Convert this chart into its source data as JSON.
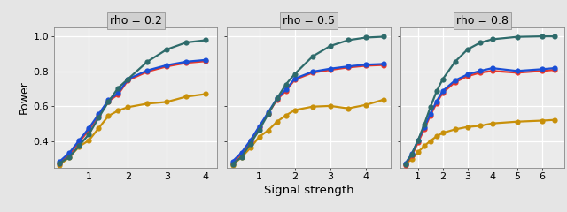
{
  "panels": [
    {
      "title": "rho = 0.2",
      "x": [
        0.25,
        0.5,
        0.75,
        1.0,
        1.25,
        1.5,
        1.75,
        2.0,
        2.5,
        3.0,
        3.5,
        4.0
      ],
      "dark_teal": [
        0.275,
        0.31,
        0.375,
        0.44,
        0.535,
        0.625,
        0.705,
        0.755,
        0.855,
        0.925,
        0.965,
        0.978
      ],
      "blue": [
        0.285,
        0.335,
        0.405,
        0.475,
        0.555,
        0.635,
        0.675,
        0.755,
        0.805,
        0.835,
        0.855,
        0.865
      ],
      "red": [
        0.275,
        0.325,
        0.395,
        0.465,
        0.548,
        0.628,
        0.668,
        0.748,
        0.798,
        0.828,
        0.848,
        0.858
      ],
      "gold": [
        0.265,
        0.31,
        0.37,
        0.405,
        0.475,
        0.545,
        0.575,
        0.595,
        0.615,
        0.625,
        0.655,
        0.67
      ],
      "xlim": [
        0.1,
        4.3
      ],
      "xticks": [
        1,
        2,
        3,
        4
      ]
    },
    {
      "title": "rho = 0.5",
      "x": [
        0.25,
        0.5,
        0.75,
        1.0,
        1.25,
        1.5,
        1.75,
        2.0,
        2.5,
        3.0,
        3.5,
        4.0,
        4.5
      ],
      "dark_teal": [
        0.27,
        0.31,
        0.385,
        0.465,
        0.555,
        0.645,
        0.725,
        0.785,
        0.885,
        0.945,
        0.978,
        0.993,
        0.998
      ],
      "blue": [
        0.285,
        0.335,
        0.405,
        0.485,
        0.565,
        0.645,
        0.695,
        0.758,
        0.798,
        0.815,
        0.828,
        0.838,
        0.842
      ],
      "red": [
        0.275,
        0.328,
        0.398,
        0.478,
        0.558,
        0.638,
        0.688,
        0.752,
        0.792,
        0.808,
        0.822,
        0.832,
        0.836
      ],
      "gold": [
        0.265,
        0.308,
        0.362,
        0.425,
        0.462,
        0.512,
        0.548,
        0.578,
        0.598,
        0.602,
        0.588,
        0.608,
        0.638
      ],
      "xlim": [
        0.1,
        4.7
      ],
      "xticks": [
        1,
        2,
        3,
        4
      ]
    },
    {
      "title": "rho = 0.8",
      "x": [
        0.5,
        0.75,
        1.0,
        1.25,
        1.5,
        1.75,
        2.0,
        2.5,
        3.0,
        3.5,
        4.0,
        5.0,
        6.0,
        6.5
      ],
      "dark_teal": [
        0.27,
        0.325,
        0.405,
        0.495,
        0.595,
        0.685,
        0.755,
        0.855,
        0.925,
        0.963,
        0.983,
        0.997,
        1.0,
        1.0
      ],
      "blue": [
        0.275,
        0.328,
        0.405,
        0.478,
        0.558,
        0.628,
        0.688,
        0.748,
        0.782,
        0.802,
        0.818,
        0.802,
        0.812,
        0.818
      ],
      "red": [
        0.265,
        0.318,
        0.392,
        0.468,
        0.548,
        0.618,
        0.678,
        0.738,
        0.772,
        0.792,
        0.802,
        0.792,
        0.802,
        0.808
      ],
      "gold": [
        0.27,
        0.298,
        0.338,
        0.372,
        0.402,
        0.428,
        0.448,
        0.468,
        0.482,
        0.488,
        0.502,
        0.512,
        0.518,
        0.522
      ],
      "xlim": [
        0.3,
        6.9
      ],
      "xticks": [
        1,
        2,
        3,
        4,
        5,
        6
      ]
    }
  ],
  "ylim": [
    0.25,
    1.05
  ],
  "yticks": [
    0.4,
    0.6,
    0.8,
    1.0
  ],
  "ylabel": "Power",
  "xlabel": "Signal strength",
  "colors": {
    "dark_teal": "#2e6b6b",
    "blue": "#1a4fd6",
    "red": "#e8372a",
    "gold": "#c8900a"
  },
  "fig_bg": "#e5e5e5",
  "panel_bg": "#ebebeb",
  "grid_color": "#ffffff",
  "strip_bg": "#d0d0d0",
  "strip_line": "#888888"
}
